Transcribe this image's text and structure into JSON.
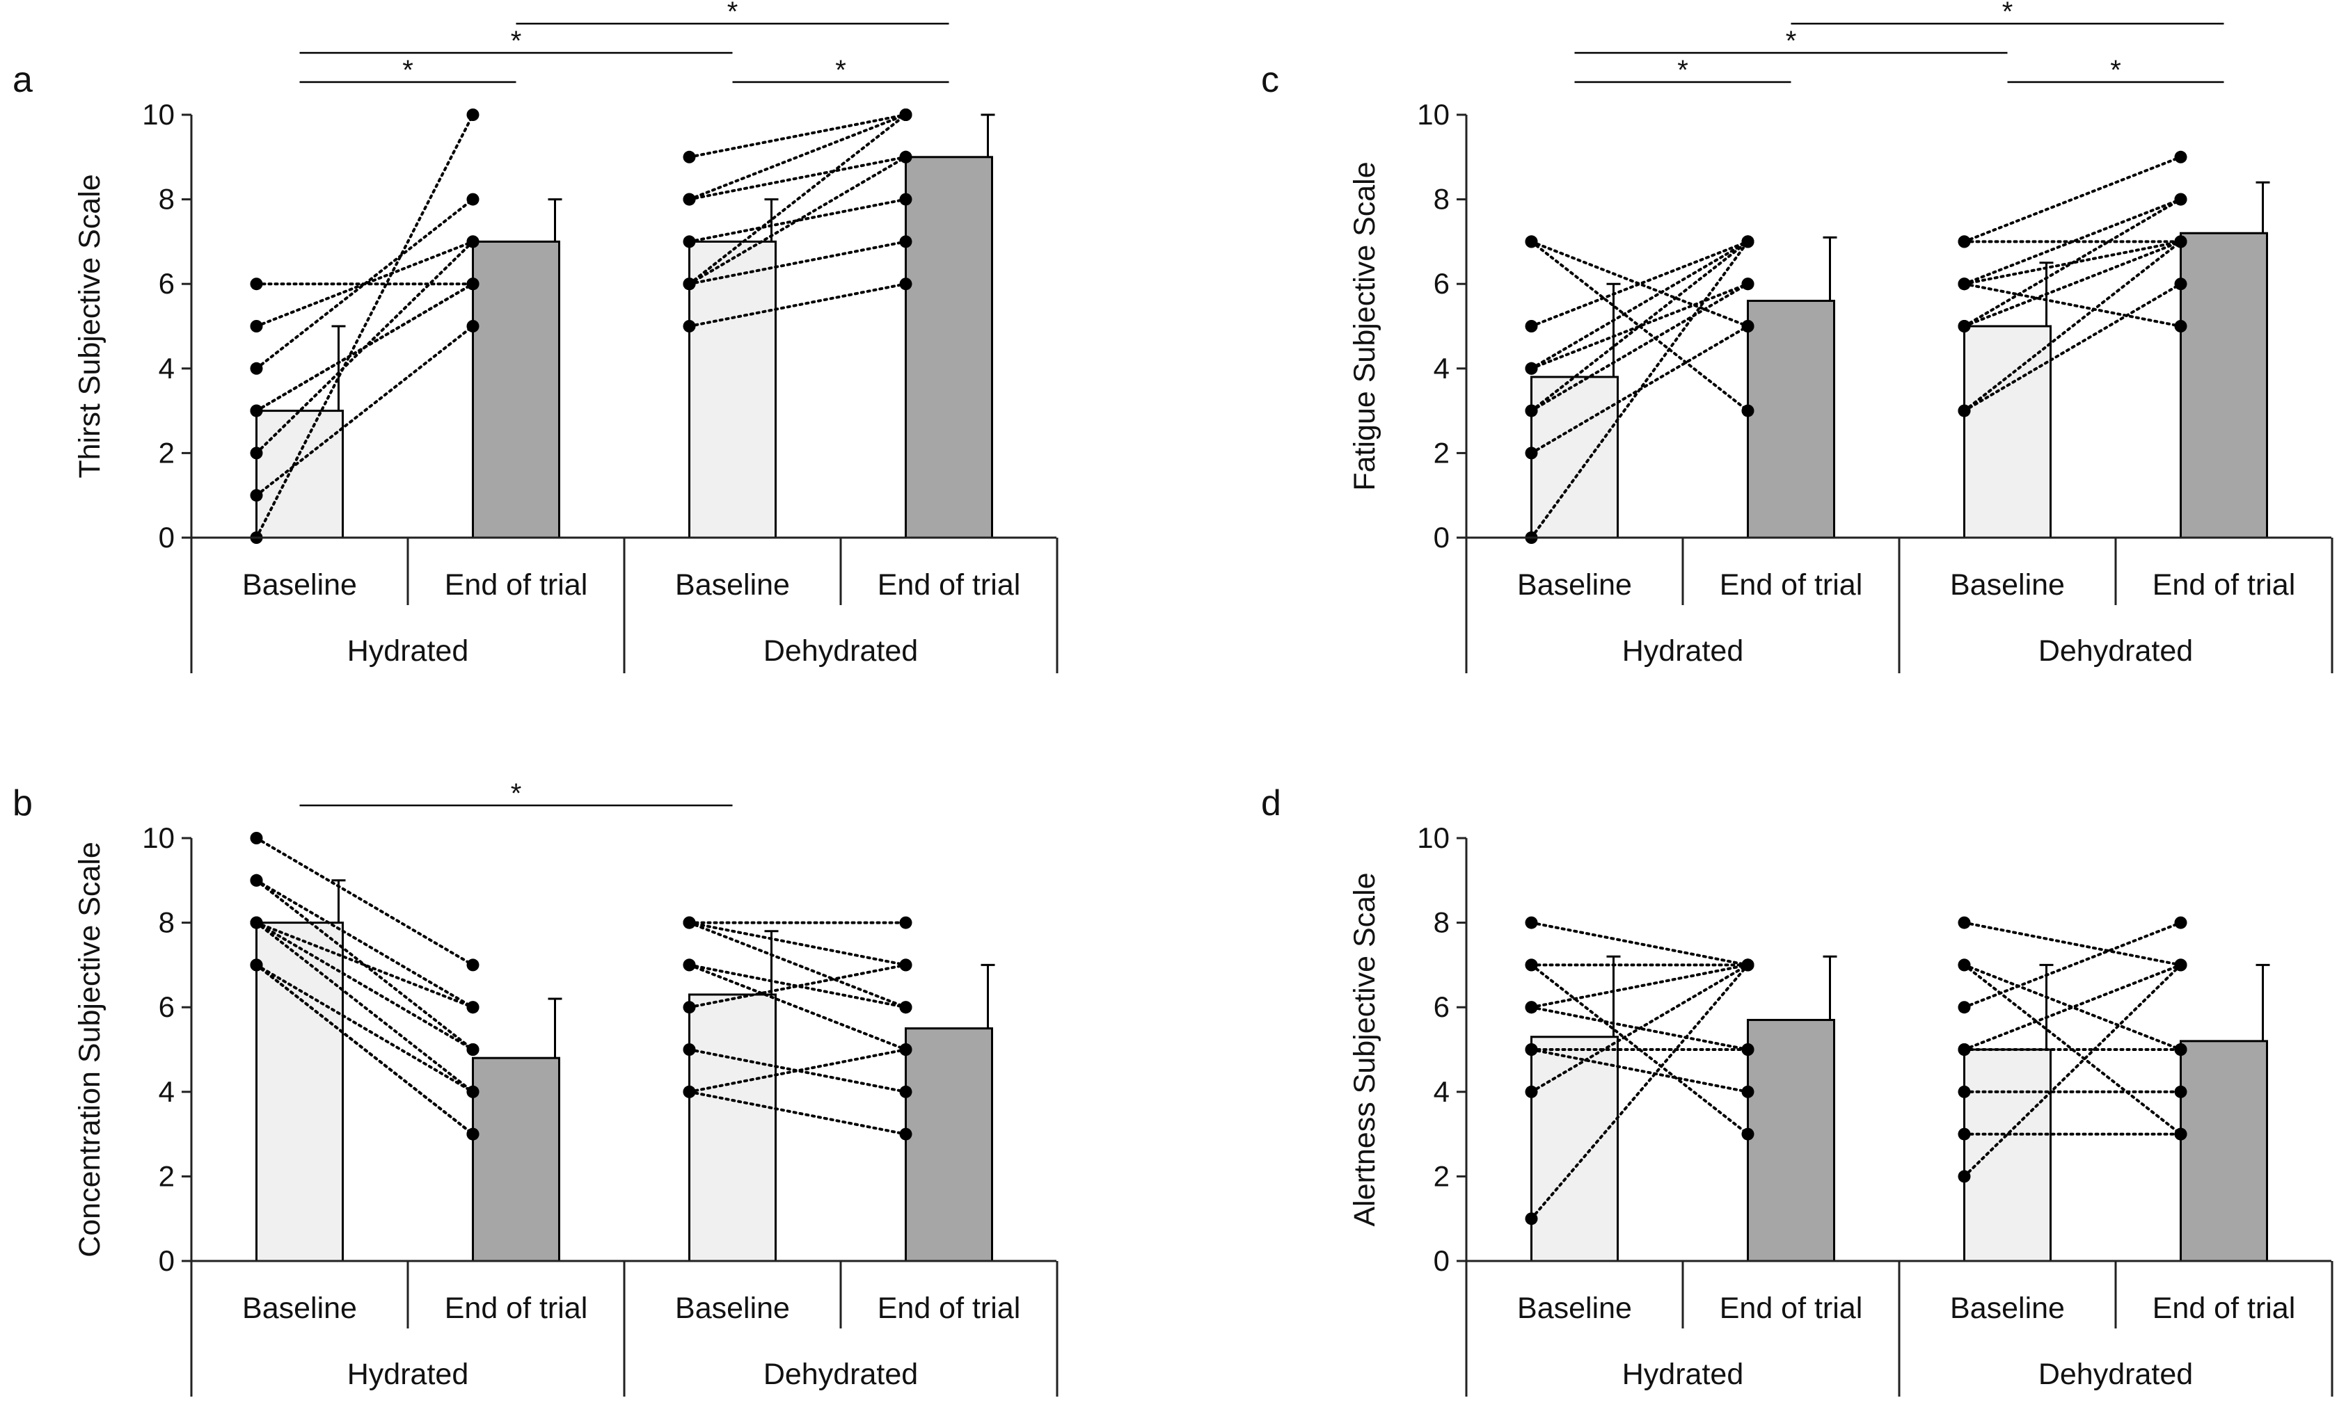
{
  "figure": {
    "x_categories": [
      "Baseline",
      "End of trial",
      "Baseline",
      "End of trial"
    ],
    "groups": [
      "Hydrated",
      "Dehydrated"
    ],
    "significance_symbol": "*"
  },
  "colors": {
    "baseline_bar": "#f0f0f0",
    "end_bar": "#a6a6a6",
    "axis": "#222222",
    "points": "#000000"
  },
  "chart_data": [
    {
      "panel": "a",
      "type": "bar",
      "ylabel": "Thirst Subjective Scale",
      "ylim": [
        0,
        10
      ],
      "yticks": [
        0,
        2,
        4,
        6,
        8,
        10
      ],
      "categories": [
        "Baseline",
        "End of trial",
        "Baseline",
        "End of trial"
      ],
      "groups": [
        "Hydrated",
        "Dehydrated"
      ],
      "series": [
        {
          "name": "mean",
          "values": [
            3.0,
            7.0,
            7.0,
            9.0
          ]
        }
      ],
      "error_plus": [
        2.0,
        1.0,
        1.0,
        1.0
      ],
      "individual_points": [
        [
          [
            6,
            6
          ],
          [
            5,
            7
          ],
          [
            4,
            8
          ],
          [
            3,
            6
          ],
          [
            2,
            7
          ],
          [
            1,
            5
          ],
          [
            0,
            10
          ],
          [
            3,
            6
          ]
        ],
        [
          [
            9,
            10
          ],
          [
            8,
            9
          ],
          [
            8,
            10
          ],
          [
            7,
            8
          ],
          [
            6,
            10
          ],
          [
            6,
            7
          ],
          [
            6,
            9
          ],
          [
            5,
            6
          ]
        ]
      ],
      "significance": [
        {
          "from": 0,
          "to": 1,
          "label": "*",
          "level": 0
        },
        {
          "from": 2,
          "to": 3,
          "label": "*",
          "level": 0
        },
        {
          "from": 0,
          "to": 2,
          "label": "*",
          "level": 1
        },
        {
          "from": 1,
          "to": 3,
          "label": "*",
          "level": 2
        }
      ]
    },
    {
      "panel": "b",
      "type": "bar",
      "ylabel": "Concentration Subjective Scale",
      "ylim": [
        0,
        10
      ],
      "yticks": [
        0,
        2,
        4,
        6,
        8,
        10
      ],
      "categories": [
        "Baseline",
        "End of trial",
        "Baseline",
        "End of trial"
      ],
      "groups": [
        "Hydrated",
        "Dehydrated"
      ],
      "series": [
        {
          "name": "mean",
          "values": [
            8.0,
            4.8,
            6.3,
            5.5
          ]
        }
      ],
      "error_plus": [
        1.0,
        1.4,
        1.5,
        1.5
      ],
      "individual_points": [
        [
          [
            10,
            7
          ],
          [
            9,
            6
          ],
          [
            9,
            5
          ],
          [
            8,
            4
          ],
          [
            8,
            5
          ],
          [
            7,
            3
          ],
          [
            7,
            4
          ],
          [
            7,
            3
          ],
          [
            8,
            6
          ]
        ],
        [
          [
            8,
            8
          ],
          [
            8,
            7
          ],
          [
            7,
            6
          ],
          [
            7,
            5
          ],
          [
            6,
            7
          ],
          [
            5,
            4
          ],
          [
            4,
            3
          ],
          [
            4,
            5
          ],
          [
            8,
            6
          ]
        ]
      ],
      "significance": [
        {
          "from": 0,
          "to": 2,
          "label": "*",
          "level": 0
        }
      ]
    },
    {
      "panel": "c",
      "type": "bar",
      "ylabel": "Fatigue Subjective Scale",
      "ylim": [
        0,
        10
      ],
      "yticks": [
        0,
        2,
        4,
        6,
        8,
        10
      ],
      "categories": [
        "Baseline",
        "End of trial",
        "Baseline",
        "End of trial"
      ],
      "groups": [
        "Hydrated",
        "Dehydrated"
      ],
      "series": [
        {
          "name": "mean",
          "values": [
            3.8,
            5.6,
            5.0,
            7.2
          ]
        }
      ],
      "error_plus": [
        2.2,
        1.5,
        1.5,
        1.2
      ],
      "individual_points": [
        [
          [
            7,
            5
          ],
          [
            7,
            3
          ],
          [
            5,
            7
          ],
          [
            4,
            7
          ],
          [
            4,
            6
          ],
          [
            3,
            6
          ],
          [
            3,
            7
          ],
          [
            2,
            5
          ],
          [
            0,
            7
          ]
        ],
        [
          [
            7,
            7
          ],
          [
            7,
            9
          ],
          [
            6,
            8
          ],
          [
            6,
            5
          ],
          [
            5,
            7
          ],
          [
            5,
            8
          ],
          [
            3,
            7
          ],
          [
            3,
            6
          ],
          [
            6,
            7
          ]
        ]
      ],
      "significance": [
        {
          "from": 0,
          "to": 1,
          "label": "*",
          "level": 0
        },
        {
          "from": 2,
          "to": 3,
          "label": "*",
          "level": 0
        },
        {
          "from": 0,
          "to": 2,
          "label": "*",
          "level": 1
        },
        {
          "from": 1,
          "to": 3,
          "label": "*",
          "level": 2
        }
      ]
    },
    {
      "panel": "d",
      "type": "bar",
      "ylabel": "Alertness Subjective Scale",
      "ylim": [
        0,
        10
      ],
      "yticks": [
        0,
        2,
        4,
        6,
        8,
        10
      ],
      "categories": [
        "Baseline",
        "End of trial",
        "Baseline",
        "End of trial"
      ],
      "groups": [
        "Hydrated",
        "Dehydrated"
      ],
      "series": [
        {
          "name": "mean",
          "values": [
            5.3,
            5.7,
            5.0,
            5.2
          ]
        }
      ],
      "error_plus": [
        1.9,
        1.5,
        2.0,
        1.8
      ],
      "individual_points": [
        [
          [
            8,
            7
          ],
          [
            7,
            7
          ],
          [
            7,
            3
          ],
          [
            6,
            5
          ],
          [
            5,
            5
          ],
          [
            5,
            4
          ],
          [
            4,
            7
          ],
          [
            1,
            7
          ],
          [
            6,
            7
          ]
        ],
        [
          [
            8,
            7
          ],
          [
            7,
            3
          ],
          [
            7,
            5
          ],
          [
            6,
            8
          ],
          [
            5,
            7
          ],
          [
            5,
            5
          ],
          [
            4,
            4
          ],
          [
            3,
            3
          ],
          [
            2,
            7
          ]
        ]
      ],
      "significance": []
    }
  ]
}
